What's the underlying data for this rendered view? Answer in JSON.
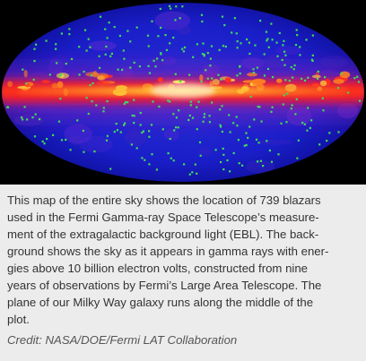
{
  "caption": {
    "lines": [
      "This map of the entire sky shows the location of 739 blazars",
      "used in the Fermi Gamma-ray Space Telescope’s measure-",
      "ment of the extragalactic background light (EBL). The back-",
      "ground shows the sky as it appears in gamma rays with ener-",
      "gies above 10 billion electron volts, constructed from nine",
      "years of observations by Fermi’s Large Area Telescope. The",
      "plane of our Milky Way galaxy runs along the middle of the",
      "plot."
    ],
    "credit": "Credit: NASA/DOE/Fermi LAT Collaboration"
  },
  "sky_map": {
    "colors": {
      "background": "#000000",
      "sky_base": "#1a1ec8",
      "sky_deep": "#0e0f9a",
      "halo": "#7a1fb8",
      "plane_red": "#ff1a1a",
      "plane_core": "#ffd23a",
      "blazar_marker": "#3fdc5a"
    }
  }
}
